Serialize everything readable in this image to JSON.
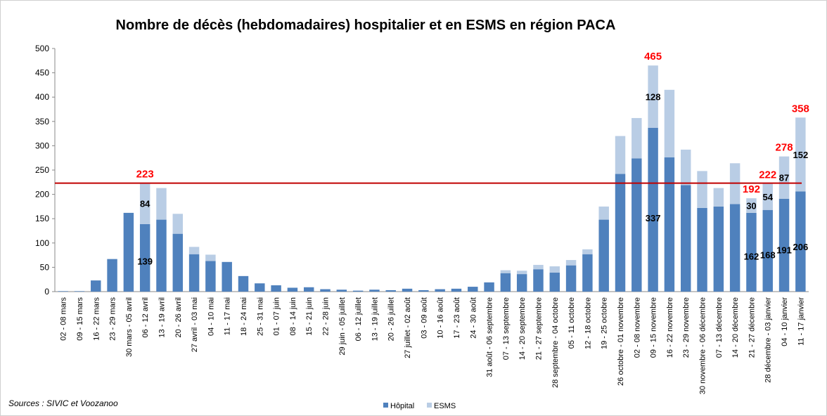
{
  "chart_data": {
    "type": "stacked_bar",
    "title": "Nombre de décès (hebdomadaires) hospitalier et en ESMS en région PACA",
    "source": "Sources : SIVIC et Voozanoo",
    "categories": [
      "02 - 08 mars",
      "09 - 15 mars",
      "16 - 22 mars",
      "23 - 29 mars",
      "30 mars - 05 avril",
      "06 - 12 avril",
      "13 - 19 avril",
      "20 - 26 avril",
      "27 avril - 03 mai",
      "04 - 10 mai",
      "11 - 17 mai",
      "18 - 24 mai",
      "25 - 31 mai",
      "01 - 07 juin",
      "08 - 14 juin",
      "15 - 21 juin",
      "22 - 28 juin",
      "29 juin - 05 juillet",
      "06 - 12 juillet",
      "13 - 19 juillet",
      "20 - 26 juillet",
      "27 juillet - 02 août",
      "03 - 09 août",
      "10 - 16 août",
      "17 - 23 août",
      "24 - 30 août",
      "31 août - 06 septembre",
      "07 - 13 septembre",
      "14 - 20 septembre",
      "21 - 27 septembre",
      "28 septembre - 04 octobre",
      "05 - 11 octobre",
      "12 - 18 octobre",
      "19 - 25 octobre",
      "26 octobre - 01 novembre",
      "02 - 08 novembre",
      "09 - 15 novembre",
      "16 - 22 novembre",
      "23 - 29 novembre",
      "30 novembre - 06 décembre",
      "07 - 13 décembre",
      "14 - 20 décembre",
      "21 - 27 décembre",
      "28 décembre - 03 janvier",
      "04 - 10 janvier",
      "11 - 17 janvier"
    ],
    "series": [
      {
        "name": "Hôpital",
        "color": "#4f81bd",
        "values": [
          1,
          1,
          23,
          67,
          162,
          139,
          148,
          119,
          77,
          63,
          61,
          32,
          17,
          13,
          8,
          9,
          5,
          4,
          2,
          4,
          3,
          6,
          3,
          5,
          6,
          10,
          19,
          38,
          36,
          46,
          39,
          54,
          77,
          148,
          242,
          274,
          337,
          276,
          219,
          172,
          175,
          180,
          162,
          168,
          191,
          206
        ],
        "value_labels": [
          null,
          null,
          null,
          null,
          null,
          139,
          null,
          null,
          null,
          null,
          null,
          null,
          null,
          null,
          null,
          null,
          null,
          null,
          null,
          null,
          null,
          null,
          null,
          null,
          null,
          null,
          null,
          null,
          null,
          null,
          null,
          null,
          null,
          null,
          null,
          null,
          337,
          null,
          null,
          null,
          null,
          null,
          162,
          168,
          191,
          206
        ]
      },
      {
        "name": "ESMS",
        "color": "#b9cde5",
        "values": [
          0,
          0,
          0,
          0,
          0,
          84,
          65,
          41,
          15,
          13,
          0,
          0,
          0,
          0,
          0,
          0,
          0,
          0,
          0,
          0,
          0,
          0,
          0,
          0,
          0,
          0,
          0,
          6,
          7,
          9,
          13,
          11,
          10,
          27,
          78,
          83,
          128,
          139,
          73,
          76,
          38,
          84,
          30,
          54,
          87,
          152
        ],
        "value_labels": [
          null,
          null,
          null,
          null,
          null,
          84,
          null,
          null,
          null,
          null,
          null,
          null,
          null,
          null,
          null,
          null,
          null,
          null,
          null,
          null,
          null,
          null,
          null,
          null,
          null,
          null,
          null,
          null,
          null,
          null,
          null,
          null,
          null,
          null,
          null,
          null,
          128,
          null,
          null,
          null,
          null,
          null,
          30,
          54,
          87,
          152
        ]
      }
    ],
    "totals": [
      null,
      null,
      null,
      null,
      null,
      223,
      null,
      null,
      null,
      null,
      null,
      null,
      null,
      null,
      null,
      null,
      null,
      null,
      null,
      null,
      null,
      null,
      null,
      null,
      null,
      null,
      null,
      null,
      null,
      null,
      null,
      null,
      null,
      null,
      null,
      null,
      465,
      null,
      null,
      null,
      null,
      null,
      192,
      222,
      278,
      358
    ],
    "total_color": "#ff0000",
    "reference_line": {
      "value": 223,
      "color": "#c00000"
    },
    "ylim": [
      0,
      500
    ],
    "yticks": [
      0,
      50,
      100,
      150,
      200,
      250,
      300,
      350,
      400,
      450,
      500
    ],
    "grid": false
  }
}
